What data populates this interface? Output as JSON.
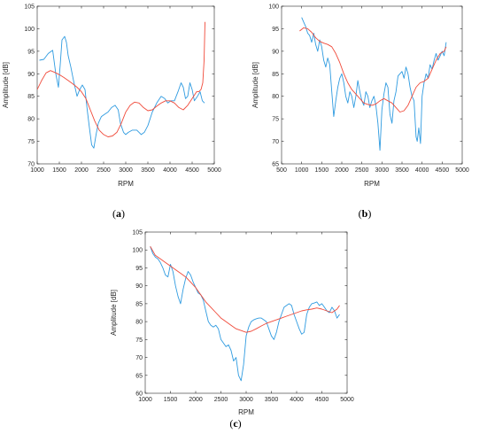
{
  "colors": {
    "measured": "#2f9be0",
    "smoothed": "#f04a3a",
    "axis": "#262626"
  },
  "chart_data": [
    {
      "type": "line",
      "panel_label": "a",
      "xlabel": "RPM",
      "ylabel": "Amplitude [dB]",
      "xlim": [
        1000,
        5000
      ],
      "ylim": [
        70,
        105
      ],
      "xticks": [
        1000,
        1500,
        2000,
        2500,
        3000,
        3500,
        4000,
        4500,
        5000
      ],
      "yticks": [
        70,
        75,
        80,
        85,
        90,
        95,
        100,
        105
      ],
      "grid": false,
      "series": [
        {
          "x": [
            1050,
            1150,
            1250,
            1350,
            1420,
            1480,
            1520,
            1560,
            1620,
            1660,
            1700,
            1760,
            1820,
            1900,
            1960,
            2020,
            2080,
            2130,
            2180,
            2230,
            2280,
            2330,
            2380,
            2450,
            2520,
            2600,
            2680,
            2760,
            2830,
            2880,
            2950,
            3000,
            3060,
            3150,
            3250,
            3350,
            3420,
            3500,
            3600,
            3700,
            3800,
            3880,
            3950,
            4020,
            4100,
            4180,
            4250,
            4300,
            4350,
            4400,
            4450,
            4500,
            4550,
            4620,
            4680,
            4730,
            4780
          ],
          "y": [
            93,
            93.2,
            94.5,
            95.2,
            90,
            87,
            92,
            97.5,
            98.3,
            97,
            94,
            91.5,
            88.5,
            85,
            86.5,
            87.5,
            86.5,
            82,
            78,
            74.2,
            73.5,
            76.5,
            79,
            80.5,
            81,
            81.5,
            82.5,
            83,
            82,
            79,
            77,
            76.5,
            77,
            77.5,
            77.5,
            76.5,
            77,
            78.5,
            81.5,
            83.5,
            85,
            84.5,
            83.5,
            84,
            84,
            86,
            88,
            87,
            84.5,
            85,
            88,
            86.5,
            84,
            85,
            86,
            84,
            83.5
          ]
        },
        {
          "x": [
            1000,
            1100,
            1200,
            1300,
            1400,
            1500,
            1600,
            1700,
            1800,
            1900,
            2000,
            2100,
            2200,
            2300,
            2400,
            2500,
            2600,
            2700,
            2800,
            2900,
            3000,
            3100,
            3200,
            3300,
            3400,
            3500,
            3600,
            3700,
            3800,
            3900,
            4000,
            4100,
            4200,
            4300,
            4400,
            4500,
            4600,
            4650,
            4700,
            4740,
            4770,
            4790
          ],
          "y": [
            86.5,
            88.5,
            90.2,
            90.7,
            90.3,
            89.8,
            89.2,
            88.5,
            87.8,
            87,
            86,
            84.5,
            82,
            79.5,
            77.5,
            76.5,
            76,
            76.2,
            77,
            79,
            81.5,
            83,
            83.7,
            83.5,
            82.5,
            81.8,
            82,
            82.8,
            83.5,
            84,
            84,
            83.5,
            82.5,
            82,
            83,
            84.5,
            86,
            86,
            86.5,
            88,
            93,
            101.5
          ]
        }
      ]
    },
    {
      "type": "line",
      "panel_label": "b",
      "xlabel": "RPM",
      "ylabel": "Amplitude [dB]",
      "xlim": [
        500,
        5000
      ],
      "ylim": [
        65,
        100
      ],
      "xticks": [
        500,
        1000,
        1500,
        2000,
        2500,
        3000,
        3500,
        4000,
        4500,
        5000
      ],
      "yticks": [
        65,
        70,
        75,
        80,
        85,
        90,
        95,
        100
      ],
      "grid": false,
      "series": [
        {
          "x": [
            1000,
            1050,
            1100,
            1150,
            1200,
            1250,
            1300,
            1350,
            1400,
            1450,
            1500,
            1550,
            1600,
            1650,
            1700,
            1750,
            1800,
            1850,
            1900,
            1950,
            2000,
            2050,
            2100,
            2150,
            2200,
            2250,
            2300,
            2350,
            2400,
            2450,
            2500,
            2550,
            2600,
            2650,
            2700,
            2750,
            2800,
            2850,
            2900,
            2950,
            3000,
            3050,
            3100,
            3150,
            3200,
            3250,
            3300,
            3350,
            3400,
            3450,
            3500,
            3550,
            3600,
            3650,
            3700,
            3750,
            3800,
            3850,
            3880,
            3920,
            3960,
            4000,
            4050,
            4100,
            4150,
            4200,
            4250,
            4300,
            4350,
            4400,
            4450,
            4500,
            4550,
            4600
          ],
          "y": [
            97.5,
            96.5,
            95.5,
            94,
            93.5,
            92,
            94,
            91.5,
            90,
            92.5,
            91,
            88,
            86.5,
            88.5,
            87,
            81,
            75.5,
            79,
            82,
            84,
            85,
            83,
            80,
            78.5,
            81,
            80,
            77.5,
            80,
            83.5,
            81,
            79,
            78,
            81,
            80,
            77.5,
            79,
            80,
            78,
            74,
            68,
            77,
            80.5,
            83,
            82,
            76,
            74,
            79,
            81,
            84.5,
            85,
            85.5,
            84,
            86.5,
            85,
            82,
            80,
            79,
            71,
            70,
            73,
            69.5,
            80,
            83,
            85,
            84,
            87,
            86,
            88,
            89.5,
            88,
            89,
            90,
            89,
            92
          ]
        },
        {
          "x": [
            950,
            1050,
            1150,
            1250,
            1350,
            1450,
            1550,
            1650,
            1750,
            1850,
            1950,
            2050,
            2150,
            2250,
            2350,
            2450,
            2550,
            2650,
            2750,
            2850,
            2950,
            3050,
            3150,
            3250,
            3350,
            3450,
            3550,
            3650,
            3750,
            3850,
            3950,
            4050,
            4150,
            4250,
            4350,
            4450,
            4550,
            4600
          ],
          "y": [
            94.5,
            95.2,
            95,
            94.2,
            93,
            92.2,
            91.8,
            91.5,
            91,
            89.5,
            87.5,
            85,
            83,
            81.5,
            80.5,
            79.5,
            78.5,
            78.2,
            78,
            78.3,
            79,
            79.5,
            79,
            78.5,
            77.5,
            76.5,
            76.8,
            78,
            80,
            82,
            83,
            83.3,
            84,
            86,
            88,
            89.5,
            90,
            91
          ]
        }
      ]
    },
    {
      "type": "line",
      "panel_label": "c",
      "xlabel": "RPM",
      "ylabel": "Amplitude [dB]",
      "xlim": [
        1000,
        5000
      ],
      "ylim": [
        60,
        105
      ],
      "xticks": [
        1000,
        1500,
        2000,
        2500,
        3000,
        3500,
        4000,
        4500,
        5000
      ],
      "yticks": [
        60,
        65,
        70,
        75,
        80,
        85,
        90,
        95,
        100,
        105
      ],
      "grid": false,
      "series": [
        {
          "x": [
            1100,
            1150,
            1200,
            1250,
            1300,
            1350,
            1400,
            1450,
            1500,
            1550,
            1600,
            1650,
            1700,
            1750,
            1800,
            1850,
            1900,
            1950,
            2000,
            2050,
            2100,
            2150,
            2200,
            2250,
            2300,
            2350,
            2400,
            2450,
            2500,
            2550,
            2600,
            2650,
            2700,
            2750,
            2800,
            2850,
            2900,
            2950,
            3000,
            3050,
            3100,
            3150,
            3200,
            3250,
            3300,
            3350,
            3400,
            3450,
            3500,
            3550,
            3600,
            3650,
            3700,
            3750,
            3800,
            3850,
            3900,
            3950,
            4000,
            4050,
            4100,
            4150,
            4200,
            4250,
            4300,
            4350,
            4400,
            4450,
            4500,
            4550,
            4600,
            4650,
            4700,
            4750,
            4800,
            4850
          ],
          "y": [
            101,
            99,
            98,
            97.5,
            96.5,
            95,
            93,
            92.5,
            96,
            94,
            90,
            87,
            85,
            89,
            92,
            94,
            93,
            91,
            89.5,
            88,
            87.5,
            86,
            83,
            80,
            79,
            78.5,
            79,
            78,
            75,
            74,
            73,
            73.5,
            72,
            69,
            70,
            65,
            63.5,
            68,
            76,
            78.5,
            80,
            80.5,
            80.8,
            81,
            81,
            80.5,
            80,
            78,
            76,
            75,
            77,
            80,
            82,
            84,
            84.5,
            85,
            84.5,
            82,
            80,
            78,
            76.5,
            77,
            82,
            84,
            85,
            85.2,
            85.5,
            84.5,
            85,
            84,
            83,
            82.5,
            84,
            83,
            81,
            82
          ]
        },
        {
          "x": [
            1100,
            1200,
            1300,
            1400,
            1500,
            1600,
            1700,
            1800,
            1900,
            2000,
            2100,
            2200,
            2300,
            2400,
            2500,
            2600,
            2700,
            2800,
            2900,
            3000,
            3100,
            3200,
            3300,
            3400,
            3500,
            3600,
            3700,
            3800,
            3900,
            4000,
            4100,
            4200,
            4300,
            4400,
            4500,
            4600,
            4700,
            4800,
            4850
          ],
          "y": [
            101,
            98.5,
            97.5,
            96.5,
            95.5,
            94.5,
            93.5,
            92.5,
            91,
            89.5,
            87.5,
            85.5,
            84,
            82.5,
            81,
            80,
            79,
            78,
            77.5,
            77,
            77.3,
            78,
            78.8,
            79.5,
            80,
            80.5,
            81,
            81.5,
            82,
            82.5,
            83,
            83.3,
            83.5,
            83.8,
            83.5,
            83,
            82.5,
            83.5,
            84.5
          ]
        }
      ]
    }
  ]
}
